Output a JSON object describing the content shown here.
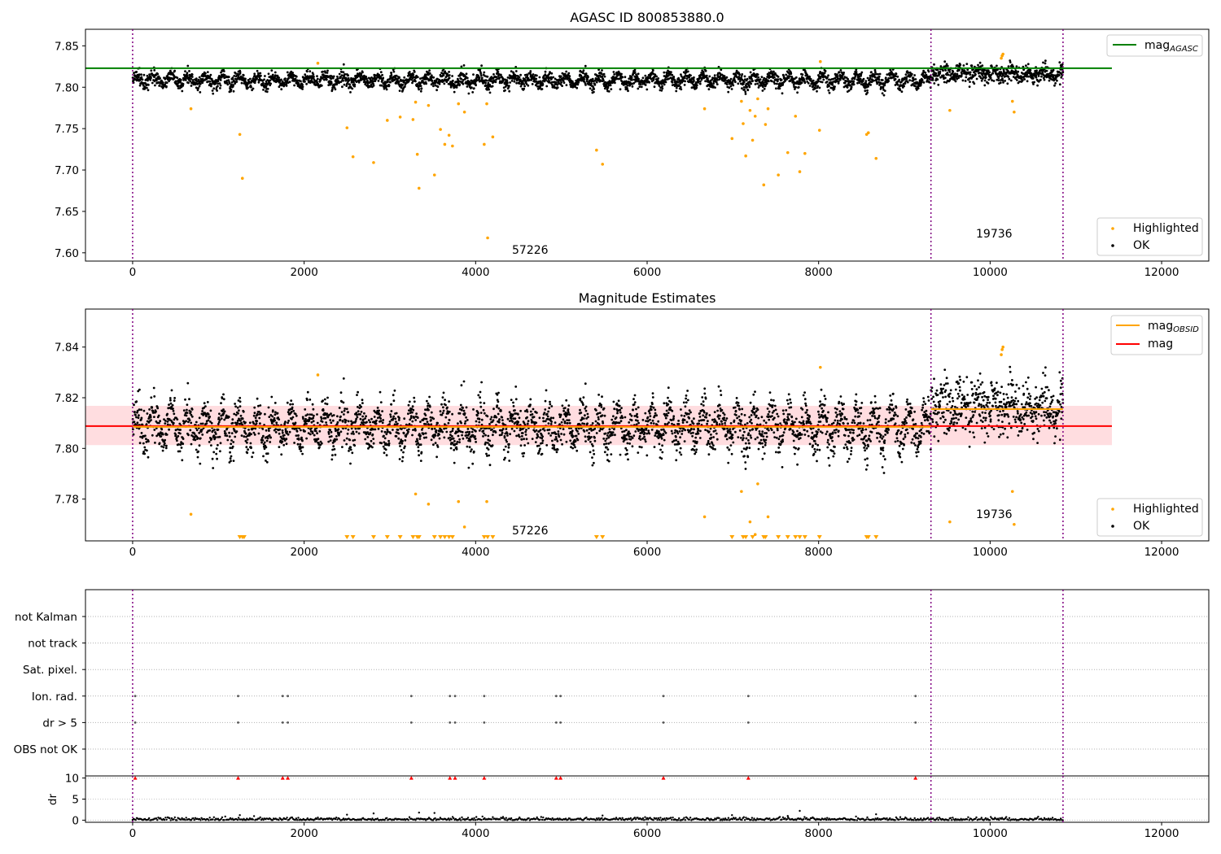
{
  "chart_data": [
    {
      "type": "scatter",
      "title": "AGASC ID 800853880.0",
      "xlabel": "",
      "ylabel": "",
      "xlim": [
        -550,
        12550
      ],
      "ylim": [
        7.59,
        7.87
      ],
      "x_ticks": [
        0,
        2000,
        4000,
        6000,
        8000,
        10000,
        12000
      ],
      "x_tick_labels": [
        "0",
        "2000",
        "4000",
        "6000",
        "8000",
        "10000",
        "12000"
      ],
      "y_ticks": [
        7.6,
        7.65,
        7.7,
        7.75,
        7.8,
        7.85
      ],
      "y_tick_labels": [
        "7.60",
        "7.65",
        "7.70",
        "7.75",
        "7.80",
        "7.85"
      ],
      "obsid_boundaries": [
        0,
        9310,
        10850
      ],
      "annotations": [
        {
          "text": "57226",
          "x": 4450,
          "y": 7.598
        },
        {
          "text": "19736",
          "x": 9850,
          "y": 7.618
        }
      ],
      "legend_top": {
        "position": "top-right",
        "entries": [
          {
            "label": "mag",
            "sub": "AGASC",
            "color": "#008000"
          }
        ]
      },
      "legend_bottom": {
        "position": "bottom-right",
        "entries": [
          {
            "label": "Highlighted",
            "color": "#ffa500"
          },
          {
            "label": "OK",
            "color": "#000000"
          }
        ]
      },
      "lines": [
        {
          "name": "mag_AGASC",
          "y": 7.823,
          "x_range": [
            -550,
            11420
          ],
          "color": "#008000"
        }
      ],
      "series": [
        {
          "name": "OK",
          "color": "#000000",
          "segments": [
            {
              "x_range": [
                0,
                9310
              ],
              "center": 7.8085,
              "osc_amp": 0.0055,
              "osc_period": 200,
              "noise": 0.0042
            },
            {
              "x_range": [
                9310,
                10850
              ],
              "center": 7.816,
              "osc_amp": 0.003,
              "osc_period": 200,
              "noise": 0.0055
            }
          ]
        },
        {
          "name": "Highlighted",
          "color": "#ffa500",
          "points": [
            [
              680,
              7.774
            ],
            [
              1250,
              7.743
            ],
            [
              1280,
              7.69
            ],
            [
              2160,
              7.829
            ],
            [
              2500,
              7.751
            ],
            [
              2570,
              7.716
            ],
            [
              2810,
              7.709
            ],
            [
              2970,
              7.76
            ],
            [
              3120,
              7.764
            ],
            [
              3270,
              7.761
            ],
            [
              3300,
              7.782
            ],
            [
              3320,
              7.719
            ],
            [
              3340,
              7.678
            ],
            [
              3450,
              7.778
            ],
            [
              3520,
              7.694
            ],
            [
              3590,
              7.749
            ],
            [
              3640,
              7.731
            ],
            [
              3690,
              7.742
            ],
            [
              3730,
              7.729
            ],
            [
              3800,
              7.78
            ],
            [
              3870,
              7.77
            ],
            [
              4100,
              7.731
            ],
            [
              4130,
              7.78
            ],
            [
              4140,
              7.618
            ],
            [
              4200,
              7.74
            ],
            [
              5410,
              7.724
            ],
            [
              5480,
              7.707
            ],
            [
              6670,
              7.774
            ],
            [
              6990,
              7.738
            ],
            [
              7100,
              7.783
            ],
            [
              7120,
              7.756
            ],
            [
              7150,
              7.717
            ],
            [
              7200,
              7.772
            ],
            [
              7230,
              7.736
            ],
            [
              7260,
              7.765
            ],
            [
              7290,
              7.786
            ],
            [
              7360,
              7.682
            ],
            [
              7380,
              7.755
            ],
            [
              7410,
              7.774
            ],
            [
              7530,
              7.694
            ],
            [
              7640,
              7.721
            ],
            [
              7730,
              7.765
            ],
            [
              7780,
              7.698
            ],
            [
              7840,
              7.72
            ],
            [
              8010,
              7.748
            ],
            [
              8020,
              7.831
            ],
            [
              8560,
              7.743
            ],
            [
              8580,
              7.745
            ],
            [
              8670,
              7.714
            ],
            [
              9530,
              7.772
            ],
            [
              10130,
              7.835
            ],
            [
              10140,
              7.838
            ],
            [
              10150,
              7.84
            ],
            [
              10260,
              7.783
            ],
            [
              10280,
              7.77
            ]
          ]
        }
      ]
    },
    {
      "type": "scatter",
      "title": "Magnitude Estimates",
      "xlabel": "",
      "ylabel": "",
      "xlim": [
        -550,
        12550
      ],
      "ylim": [
        7.7635,
        7.855
      ],
      "x_ticks": [
        0,
        2000,
        4000,
        6000,
        8000,
        10000,
        12000
      ],
      "x_tick_labels": [
        "0",
        "2000",
        "4000",
        "6000",
        "8000",
        "10000",
        "12000"
      ],
      "y_ticks": [
        7.78,
        7.8,
        7.82,
        7.84
      ],
      "y_tick_labels": [
        "7.78",
        "7.80",
        "7.82",
        "7.84"
      ],
      "obsid_boundaries": [
        0,
        9310,
        10850
      ],
      "annotations": [
        {
          "text": "57226",
          "x": 4450,
          "y": 7.7665
        },
        {
          "text": "19736",
          "x": 9850,
          "y": 7.7725
        }
      ],
      "legend_top": {
        "position": "top-right",
        "entries": [
          {
            "label": "mag",
            "sub": "OBSID",
            "color": "#ffa500"
          },
          {
            "label": "mag",
            "sub": "",
            "color": "#ff0000"
          }
        ]
      },
      "legend_bottom": {
        "position": "bottom-right",
        "entries": [
          {
            "label": "Highlighted",
            "color": "#ffa500"
          },
          {
            "label": "OK",
            "color": "#000000"
          }
        ]
      },
      "bands": [
        {
          "x_range": [
            -550,
            11420
          ],
          "y_range": [
            7.8013,
            7.8168
          ],
          "color": "#ffb3ba"
        }
      ],
      "lines": [
        {
          "name": "mag",
          "y": 7.8088,
          "x_range": [
            -550,
            11420
          ],
          "color": "#ff0000"
        },
        {
          "name": "mag_OBSID",
          "y": 7.8085,
          "x_range": [
            0,
            9310
          ],
          "color": "#ffa500"
        },
        {
          "name": "mag_OBSID",
          "y": 7.8155,
          "x_range": [
            9310,
            10850
          ],
          "color": "#ffa500"
        }
      ],
      "series": [
        {
          "name": "OK",
          "color": "#000000",
          "segments": [
            {
              "x_range": [
                0,
                9310
              ],
              "center": 7.8085,
              "osc_amp": 0.0055,
              "osc_period": 200,
              "noise": 0.0042
            },
            {
              "x_range": [
                9310,
                10850
              ],
              "center": 7.816,
              "osc_amp": 0.003,
              "osc_period": 200,
              "noise": 0.0055
            }
          ]
        },
        {
          "name": "Highlighted",
          "color": "#ffa500",
          "points": [
            [
              680,
              7.774
            ],
            [
              2160,
              7.829
            ],
            [
              3300,
              7.782
            ],
            [
              3450,
              7.778
            ],
            [
              3800,
              7.779
            ],
            [
              3870,
              7.769
            ],
            [
              4130,
              7.779
            ],
            [
              6670,
              7.773
            ],
            [
              7100,
              7.783
            ],
            [
              7200,
              7.771
            ],
            [
              7260,
              7.766
            ],
            [
              7290,
              7.786
            ],
            [
              7410,
              7.773
            ],
            [
              8020,
              7.832
            ],
            [
              9530,
              7.771
            ],
            [
              10130,
              7.837
            ],
            [
              10140,
              7.839
            ],
            [
              10150,
              7.84
            ],
            [
              10260,
              7.783
            ],
            [
              10280,
              7.77
            ]
          ]
        },
        {
          "name": "Highlighted below axis",
          "color": "#ffa500",
          "marker": "triangle-down",
          "x": [
            1250,
            1280,
            1300,
            2500,
            2570,
            2810,
            2970,
            3120,
            3270,
            3320,
            3340,
            3520,
            3590,
            3640,
            3690,
            3730,
            4100,
            4140,
            4200,
            5410,
            5480,
            6990,
            7120,
            7150,
            7230,
            7360,
            7380,
            7530,
            7640,
            7730,
            7780,
            7840,
            8010,
            8560,
            8580,
            8670
          ]
        }
      ]
    },
    {
      "type": "scatter",
      "title": "",
      "xlabel": "",
      "ylabel": "",
      "xlim": [
        -550,
        12550
      ],
      "categories": [
        "not Kalman",
        "not track",
        "Sat. pixel.",
        "Ion. rad.",
        "dr > 5",
        "OBS not OK"
      ],
      "obsid_boundaries": [
        0,
        9310,
        10850
      ],
      "flag_points": {
        "Ion. rad.": [
          30,
          1230,
          1750,
          1810,
          3250,
          3700,
          3760,
          4100,
          4940,
          4990,
          6190,
          7180,
          9130
        ],
        "dr > 5": [
          30,
          1230,
          1750,
          1810,
          3250,
          3700,
          3760,
          4100,
          4940,
          4990,
          6190,
          7180,
          9130
        ]
      }
    },
    {
      "type": "scatter",
      "title": "",
      "xlabel": "",
      "ylabel": "dr",
      "xlim": [
        -550,
        12550
      ],
      "ylim": [
        -0.5,
        10.5
      ],
      "x_ticks": [
        0,
        2000,
        4000,
        6000,
        8000,
        10000,
        12000
      ],
      "x_tick_labels": [
        "0",
        "2000",
        "4000",
        "6000",
        "8000",
        "10000",
        "12000"
      ],
      "y_ticks": [
        0,
        5,
        10
      ],
      "y_tick_labels": [
        "0",
        "5",
        "10"
      ],
      "obsid_boundaries": [
        0,
        9310,
        10850
      ],
      "clipped_markers": {
        "color": "#ff0000",
        "y": 10,
        "x": [
          30,
          1230,
          1750,
          1810,
          3250,
          3700,
          3760,
          4100,
          4940,
          4990,
          6190,
          7180,
          9130
        ]
      },
      "series": [
        {
          "name": "dr",
          "color": "#000000",
          "typical": 0.3,
          "outliers": [
            [
              1250,
              1.2
            ],
            [
              2500,
              1.3
            ],
            [
              2810,
              1.6
            ],
            [
              3340,
              1.8
            ],
            [
              3520,
              1.7
            ],
            [
              5480,
              1.1
            ],
            [
              6990,
              1.2
            ],
            [
              7640,
              1.0
            ],
            [
              7780,
              2.2
            ],
            [
              8670,
              1.4
            ]
          ]
        }
      ]
    }
  ]
}
